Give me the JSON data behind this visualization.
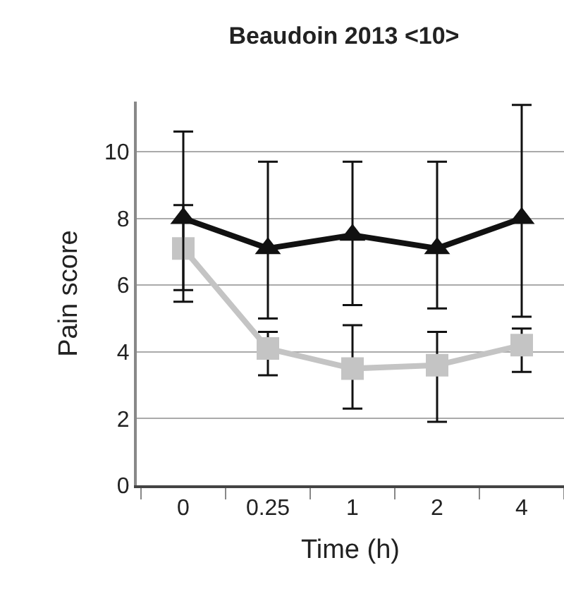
{
  "chart_data": {
    "type": "line",
    "title": "Beaudoin 2013 <10>",
    "xlabel": "Time (h)",
    "ylabel": "Pain score",
    "categories": [
      "0",
      "0.25",
      "1",
      "2",
      "4"
    ],
    "ylim": [
      0,
      11.5
    ],
    "yticks": [
      0,
      2,
      4,
      6,
      8,
      10
    ],
    "grid": "y",
    "series": [
      {
        "color": "#111111",
        "marker": "triangle",
        "values": [
          8.0,
          7.1,
          7.5,
          7.1,
          8.0
        ],
        "errors": [
          [
            5.5,
            10.6
          ],
          [
            5.0,
            9.7
          ],
          [
            5.4,
            9.7
          ],
          [
            5.3,
            9.7
          ],
          [
            5.05,
            11.4
          ]
        ]
      },
      {
        "color": "#c4c4c4",
        "marker": "square",
        "values": [
          7.1,
          4.1,
          3.5,
          3.6,
          4.2
        ],
        "errors": [
          [
            5.85,
            8.4
          ],
          [
            3.3,
            4.6
          ],
          [
            2.3,
            4.8
          ],
          [
            1.9,
            4.6
          ],
          [
            3.4,
            4.7
          ]
        ]
      }
    ]
  }
}
